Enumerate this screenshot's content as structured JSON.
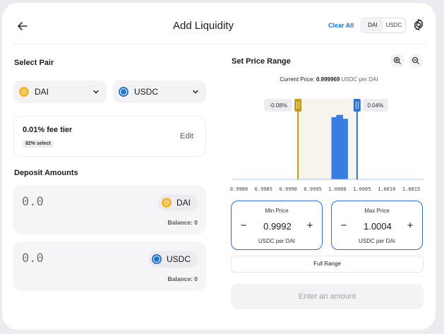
{
  "header": {
    "title": "Add Liquidity",
    "clear_all": "Clear All",
    "toggle": [
      "DAI",
      "USDC"
    ]
  },
  "select_pair": {
    "label": "Select Pair",
    "token_a": "DAI",
    "token_b": "USDC"
  },
  "fee": {
    "tier": "0.01% fee tier",
    "badge": "82% select",
    "edit": "Edit"
  },
  "deposit": {
    "label": "Deposit Amounts",
    "items": [
      {
        "placeholder": "0.0",
        "token": "DAI",
        "balance": "Balance: 0"
      },
      {
        "placeholder": "0.0",
        "token": "USDC",
        "balance": "Balance: 0"
      }
    ]
  },
  "price_range": {
    "label": "Set Price Range",
    "current_label": "Current Price:",
    "current_value": "0.999969",
    "current_unit": "USDC per DAI",
    "min_pct": "-0.08%",
    "max_pct": "0.04%",
    "ticks": [
      "0.9980",
      "0.9985",
      "0.9990",
      "0.9995",
      "1.0000",
      "1.0005",
      "1.0010",
      "1.0015"
    ],
    "min_marker": 0.9992,
    "max_marker": 1.0004,
    "x_range": [
      0.99785,
      1.00175
    ],
    "liquidity_bars": [
      {
        "x": 0.99995,
        "h": 0.8
      },
      {
        "x": 1.00005,
        "h": 0.83
      },
      {
        "x": 1.00015,
        "h": 0.78
      }
    ]
  },
  "min_price": {
    "label": "Min Price",
    "value": "0.9992",
    "unit": "USDC per DAI"
  },
  "max_price": {
    "label": "Max Price",
    "value": "1.0004",
    "unit": "USDC per DAI"
  },
  "full_range": "Full Range",
  "submit": "Enter an amount",
  "colors": {
    "accent": "#2670d8",
    "bar": "#3a7de0",
    "min_marker": "#c49b14",
    "max_marker": "#2f75d8"
  }
}
